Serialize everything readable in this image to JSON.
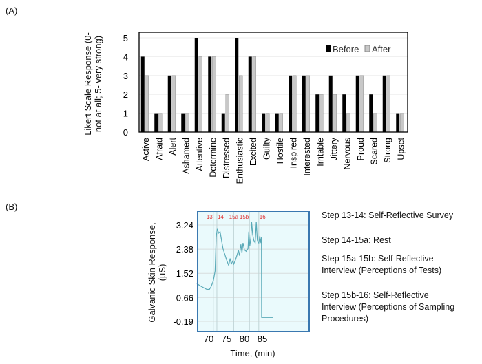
{
  "panels": {
    "a": "(A)",
    "b": "(B)"
  },
  "chart_data": [
    {
      "type": "bar",
      "ylabel": "Likert Scale Response (0- not at all; 5- very strong)",
      "ylim": [
        0,
        5
      ],
      "yticks": [
        0,
        1,
        2,
        3,
        4,
        5
      ],
      "legend_position": "top-right",
      "grid": true,
      "categories": [
        "Active",
        "Afraid",
        "Alert",
        "Ashamed",
        "Attentive",
        "Determine",
        "Distressed",
        "Enthusiastic",
        "Excited",
        "Guilty",
        "Hostile",
        "Inspired",
        "Interested",
        "Irritable",
        "Jittery",
        "Nervous",
        "Proud",
        "Scared",
        "Strong",
        "Upset"
      ],
      "series": [
        {
          "name": "Before",
          "color": "#000000",
          "values": [
            4,
            1,
            3,
            1,
            5,
            4,
            1,
            5,
            4,
            1,
            1,
            3,
            3,
            2,
            3,
            2,
            3,
            2,
            3,
            1
          ]
        },
        {
          "name": "After",
          "color": "#c8c8c8",
          "values": [
            3,
            1,
            3,
            1,
            4,
            4,
            2,
            3,
            4,
            1,
            1,
            3,
            3,
            2,
            2,
            1,
            3,
            1,
            3,
            1
          ]
        }
      ]
    },
    {
      "type": "line",
      "xlabel": "Time, (min)",
      "ylabel": "Galvanic Skin Response, (µS)",
      "xlim": [
        66.7,
        88
      ],
      "ylim": [
        -0.19,
        3.6
      ],
      "xticks": [
        70,
        75,
        80,
        85
      ],
      "yticks": [
        "-0.19",
        "0.66",
        "1.52",
        "2.38",
        "3.24"
      ],
      "grid": true,
      "background": "#eafafc",
      "line_color": "#5aaab8",
      "marker_color": "#e03030",
      "markers": [
        {
          "label": "13",
          "x": 71.3
        },
        {
          "label": "14",
          "x": 72.3
        },
        {
          "label": "15a",
          "x": 77
        },
        {
          "label": "15b",
          "x": 81.4
        },
        {
          "label": "16",
          "x": 84
        }
      ],
      "x": [
        66.7,
        68,
        69.5,
        70.2,
        70.7,
        71.3,
        71.8,
        72.1,
        72.4,
        72.8,
        73.2,
        74,
        75,
        75.6,
        76,
        76.3,
        76.7,
        77,
        77.5,
        78,
        78.3,
        78.6,
        79,
        79.3,
        79.6,
        80,
        80.5,
        81,
        81.2,
        81.5,
        81.8,
        82,
        82.3,
        82.6,
        83,
        83.3,
        83.6,
        84,
        84.3,
        84.6,
        84.75,
        84.8,
        88
      ],
      "y": [
        1.15,
        1.05,
        0.95,
        0.95,
        1.05,
        1.25,
        1.6,
        2.8,
        3.1,
        2.95,
        3.0,
        2.4,
        2.0,
        1.8,
        2.05,
        1.85,
        1.95,
        1.85,
        2.0,
        2.2,
        2.35,
        2.15,
        2.55,
        2.25,
        2.6,
        2.35,
        2.3,
        2.4,
        3.0,
        2.5,
        2.8,
        3.35,
        2.9,
        2.7,
        2.6,
        3.35,
        2.7,
        2.6,
        2.85,
        2.6,
        2.8,
        -0.05,
        -0.05
      ]
    }
  ],
  "steps": [
    "Step 13-14: Self-Reflective Survey",
    "Step 14-15a: Rest",
    "Step 15a-15b: Self-Reflective Interview (Perceptions of Tests)",
    "Step 15b-16: Self-Reflective Interview (Perceptions of Sampling Procedures)"
  ]
}
